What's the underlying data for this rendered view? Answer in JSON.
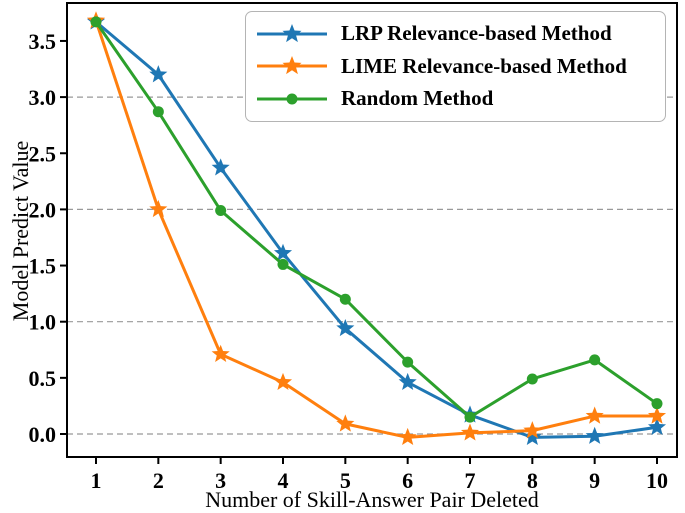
{
  "chart_data": {
    "type": "line",
    "title": "",
    "xlabel": "Number of Skill-Answer Pair Deleted",
    "ylabel": "Model Predict Value",
    "x": [
      1,
      2,
      3,
      4,
      5,
      6,
      7,
      8,
      9,
      10
    ],
    "xtick_labels": [
      "1",
      "2",
      "3",
      "4",
      "5",
      "6",
      "7",
      "8",
      "9",
      "10"
    ],
    "yticks": [
      0.0,
      0.5,
      1.0,
      1.5,
      2.0,
      2.5,
      3.0,
      3.5
    ],
    "ytick_labels": [
      "0.0",
      "0.5",
      "1.0",
      "1.5",
      "2.0",
      "2.5",
      "3.0",
      "3.5"
    ],
    "ylim": [
      -0.2,
      3.82
    ],
    "xlim": [
      0.55,
      10.33
    ],
    "grid_y": [
      0.0,
      1.0,
      2.0,
      3.0
    ],
    "grid_style": "dashed",
    "grid_color": "#999999",
    "axis_color": "#000000",
    "legend_position": "upper-right",
    "series": [
      {
        "name": "LRP Relevance-based Method",
        "color": "#1f77b4",
        "marker": "star",
        "values": [
          3.67,
          3.2,
          2.37,
          1.61,
          0.94,
          0.46,
          0.17,
          -0.03,
          -0.02,
          0.06
        ]
      },
      {
        "name": "LIME Relevance-based Method",
        "color": "#ff7f0e",
        "marker": "star",
        "values": [
          3.68,
          2.0,
          0.71,
          0.46,
          0.09,
          -0.03,
          0.01,
          0.03,
          0.16,
          0.16
        ]
      },
      {
        "name": "Random Method",
        "color": "#2ca02c",
        "marker": "circle",
        "values": [
          3.67,
          2.87,
          1.99,
          1.51,
          1.2,
          0.64,
          0.15,
          0.49,
          0.66,
          0.27
        ]
      }
    ]
  }
}
